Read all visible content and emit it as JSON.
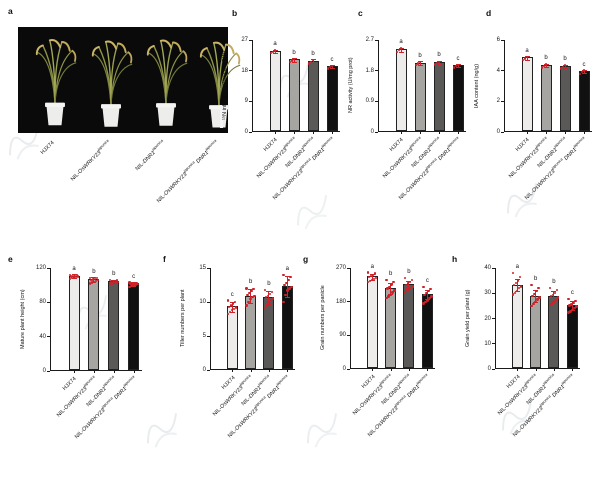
{
  "photo": {
    "letter": "a"
  },
  "categories": [
    "HJX74",
    "NIL-*OsWRKY23*^japonica^",
    "NIL-*DNR1*^japonica^",
    "NIL-*OsWRKY23*^japonica^ *DNR1*^japonica^"
  ],
  "colors": {
    "bar_fills": [
      "#edecea",
      "#a7a5a2",
      "#5b5957",
      "#111111"
    ],
    "error": "#d0222a",
    "point": "#cf2128",
    "axis": "#1a1a1a",
    "photo_background": "#0a0a0a"
  },
  "chart_data": [
    {
      "letter": "b",
      "type": "bar",
      "ylabel": "¹⁵N influx (μmol h⁻¹ g⁻¹ DW)",
      "ticks": [
        0,
        9,
        18,
        27
      ],
      "ymax": 27,
      "values": [
        23.5,
        21.0,
        20.6,
        19.0
      ],
      "errors": [
        0.5,
        0.5,
        0.6,
        0.5
      ],
      "sig": [
        "a",
        "b",
        "b",
        "c"
      ],
      "points": [
        [
          23.1,
          23.5,
          23.9
        ],
        [
          20.6,
          21.0,
          21.4
        ],
        [
          20.1,
          20.6,
          21.1
        ],
        [
          18.6,
          19.0,
          19.4
        ]
      ]
    },
    {
      "letter": "c",
      "type": "bar",
      "ylabel": "NR activity (U/mg prot)",
      "ticks": [
        0,
        0.9,
        1.8,
        2.7
      ],
      "ymax": 2.7,
      "values": [
        2.4,
        2.01,
        2.02,
        1.93
      ],
      "errors": [
        0.06,
        0.05,
        0.05,
        0.05
      ],
      "sig": [
        "a",
        "b",
        "b",
        "c"
      ],
      "points": [
        [
          2.35,
          2.4,
          2.45
        ],
        [
          1.97,
          2.01,
          2.05
        ],
        [
          1.98,
          2.02,
          2.06
        ],
        [
          1.89,
          1.93,
          1.97
        ]
      ]
    },
    {
      "letter": "d",
      "type": "bar",
      "ylabel": "IAA content (ng/g)",
      "ticks": [
        0,
        2,
        4,
        6
      ],
      "ymax": 6,
      "values": [
        4.8,
        4.3,
        4.25,
        3.9
      ],
      "errors": [
        0.12,
        0.12,
        0.1,
        0.1
      ],
      "sig": [
        "a",
        "b",
        "b",
        "c"
      ],
      "points": [
        [
          4.7,
          4.8,
          4.9
        ],
        [
          4.2,
          4.3,
          4.4
        ],
        [
          4.15,
          4.25,
          4.35
        ],
        [
          3.8,
          3.9,
          4.0
        ]
      ]
    },
    {
      "letter": "e",
      "type": "bar",
      "ylabel": "Mature plant height (cm)",
      "ticks": [
        0,
        40,
        80,
        120
      ],
      "ymax": 120,
      "values": [
        110,
        106,
        104,
        101
      ],
      "errors": [
        2.0,
        2.5,
        2.0,
        2.0
      ],
      "sig": [
        "a",
        "b",
        "b",
        "c"
      ],
      "points": [
        [
          107.5,
          108,
          109,
          109.5,
          110,
          110,
          110.5,
          111,
          111.5,
          112
        ],
        [
          102,
          103,
          104,
          105,
          106,
          106,
          106.5,
          107,
          108,
          108.5
        ],
        [
          101,
          102,
          102.5,
          103,
          104,
          104,
          104.5,
          105,
          105.5,
          106
        ],
        [
          98,
          99,
          99.5,
          100,
          101,
          101,
          101.5,
          102,
          102.5,
          103
        ]
      ]
    },
    {
      "letter": "f",
      "type": "bar",
      "ylabel": "Tiller numbers per plant",
      "ticks": [
        0,
        5,
        10,
        15
      ],
      "ymax": 15,
      "values": [
        9.2,
        10.8,
        10.6,
        12.2
      ],
      "errors": [
        0.8,
        1.0,
        1.0,
        1.6
      ],
      "sig": [
        "c",
        "b",
        "b",
        "a"
      ],
      "points": [
        [
          8.2,
          8.5,
          8.8,
          9.0,
          9.2,
          9.3,
          9.5,
          9.8,
          10.0,
          10.2
        ],
        [
          9.5,
          10.0,
          10.4,
          10.7,
          10.9,
          11.0,
          11.3,
          11.6,
          11.9,
          12.0
        ],
        [
          9.0,
          9.4,
          9.8,
          10.2,
          10.5,
          10.7,
          10.9,
          11.2,
          11.5,
          11.8
        ],
        [
          10.0,
          11.0,
          11.7,
          12.0,
          12.2,
          12.5,
          12.8,
          13.2,
          13.7,
          14.0
        ]
      ]
    },
    {
      "letter": "g",
      "type": "bar",
      "ylabel": "Grain numbers per panicle",
      "ticks": [
        0,
        90,
        180,
        270
      ],
      "ymax": 270,
      "values": [
        245,
        214,
        224,
        198
      ],
      "errors": [
        8,
        14,
        10,
        12
      ],
      "sig": [
        "a",
        "b",
        "b",
        "c"
      ],
      "points": [
        [
          232,
          235,
          238,
          241,
          244,
          246,
          248,
          251,
          255,
          258
        ],
        [
          190,
          194,
          198,
          204,
          210,
          215,
          220,
          226,
          232,
          238
        ],
        [
          205,
          208,
          212,
          217,
          221,
          225,
          229,
          233,
          238,
          243
        ],
        [
          175,
          179,
          183,
          189,
          194,
          198,
          203,
          208,
          214,
          220
        ]
      ]
    },
    {
      "letter": "h",
      "type": "bar",
      "ylabel": "Grain yield per plant (g)",
      "ticks": [
        0,
        10,
        20,
        30,
        40
      ],
      "ymax": 40,
      "values": [
        33.0,
        28.7,
        28.5,
        25.0
      ],
      "errors": [
        2.5,
        2.5,
        2.0,
        1.8
      ],
      "sig": [
        "a",
        "b",
        "b",
        "c"
      ],
      "points": [
        [
          29.5,
          30,
          31,
          32,
          32.7,
          33.2,
          34,
          35,
          36.5,
          38
        ],
        [
          25,
          25.8,
          26.5,
          27.5,
          28.3,
          29,
          29.8,
          30.8,
          32,
          33.2
        ],
        [
          25.5,
          26,
          26.8,
          27.6,
          28.3,
          28.8,
          29.4,
          30.2,
          31.2,
          32
        ],
        [
          22.3,
          22.8,
          23.4,
          24.1,
          24.7,
          25.1,
          25.6,
          26.2,
          27,
          27.8
        ]
      ]
    }
  ]
}
